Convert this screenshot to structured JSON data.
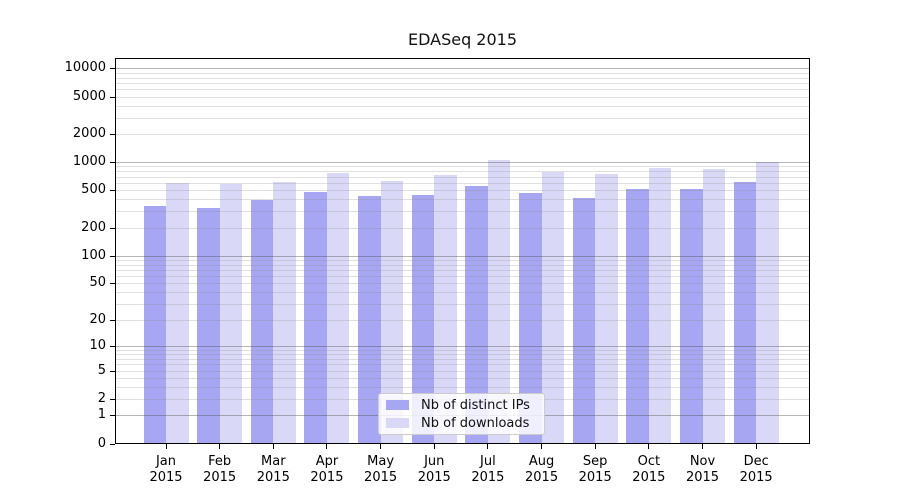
{
  "chart_data": {
    "type": "bar",
    "title": "EDASeq 2015",
    "categories": [
      "Jan",
      "Feb",
      "Mar",
      "Apr",
      "May",
      "Jun",
      "Jul",
      "Aug",
      "Sep",
      "Oct",
      "Nov",
      "Dec"
    ],
    "year": "2015",
    "series": [
      {
        "name": "Nb of distinct IPs",
        "color": "#a6a6f2",
        "values": [
          340,
          325,
          390,
          485,
          440,
          445,
          560,
          470,
          410,
          515,
          515,
          615
        ]
      },
      {
        "name": "Nb of downloads",
        "color": "#d9d9f7",
        "values": [
          600,
          590,
          610,
          775,
          635,
          735,
          1060,
          780,
          750,
          875,
          840,
          1000
        ]
      }
    ],
    "xlabel": "",
    "ylabel": "",
    "y_axis": {
      "scale": "log1p",
      "tick_labels": [
        0,
        1,
        2,
        5,
        10,
        20,
        50,
        100,
        200,
        500,
        1000,
        2000,
        5000,
        10000
      ],
      "range": [
        0,
        13000
      ],
      "grid": "on",
      "minor_grid": "on"
    },
    "legend": {
      "position": "inside-bottom-center"
    }
  }
}
